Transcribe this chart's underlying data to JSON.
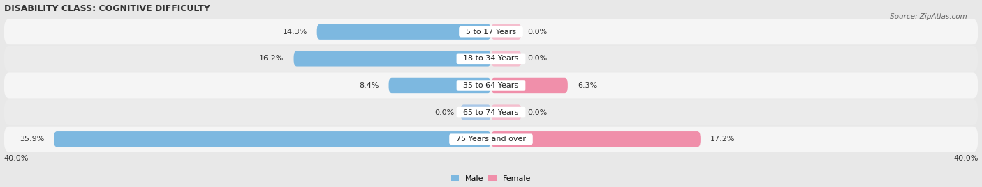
{
  "title": "DISABILITY CLASS: COGNITIVE DIFFICULTY",
  "source": "Source: ZipAtlas.com",
  "categories": [
    "5 to 17 Years",
    "18 to 34 Years",
    "35 to 64 Years",
    "65 to 74 Years",
    "75 Years and over"
  ],
  "male_values": [
    14.3,
    16.2,
    8.4,
    0.0,
    35.9
  ],
  "female_values": [
    0.0,
    0.0,
    6.3,
    0.0,
    17.2
  ],
  "male_color": "#7db8e0",
  "female_color": "#f08faa",
  "male_color_0": "#aac8e8",
  "female_color_0": "#f5bece",
  "max_val": 40.0,
  "stub_val": 2.5,
  "bar_height": 0.58,
  "bg_color": "#e8e8e8",
  "row_bg_even": "#f5f5f5",
  "row_bg_odd": "#ebebeb",
  "axis_label_left": "40.0%",
  "axis_label_right": "40.0%",
  "title_fontsize": 9,
  "label_fontsize": 8,
  "tick_fontsize": 8,
  "source_fontsize": 7.5
}
